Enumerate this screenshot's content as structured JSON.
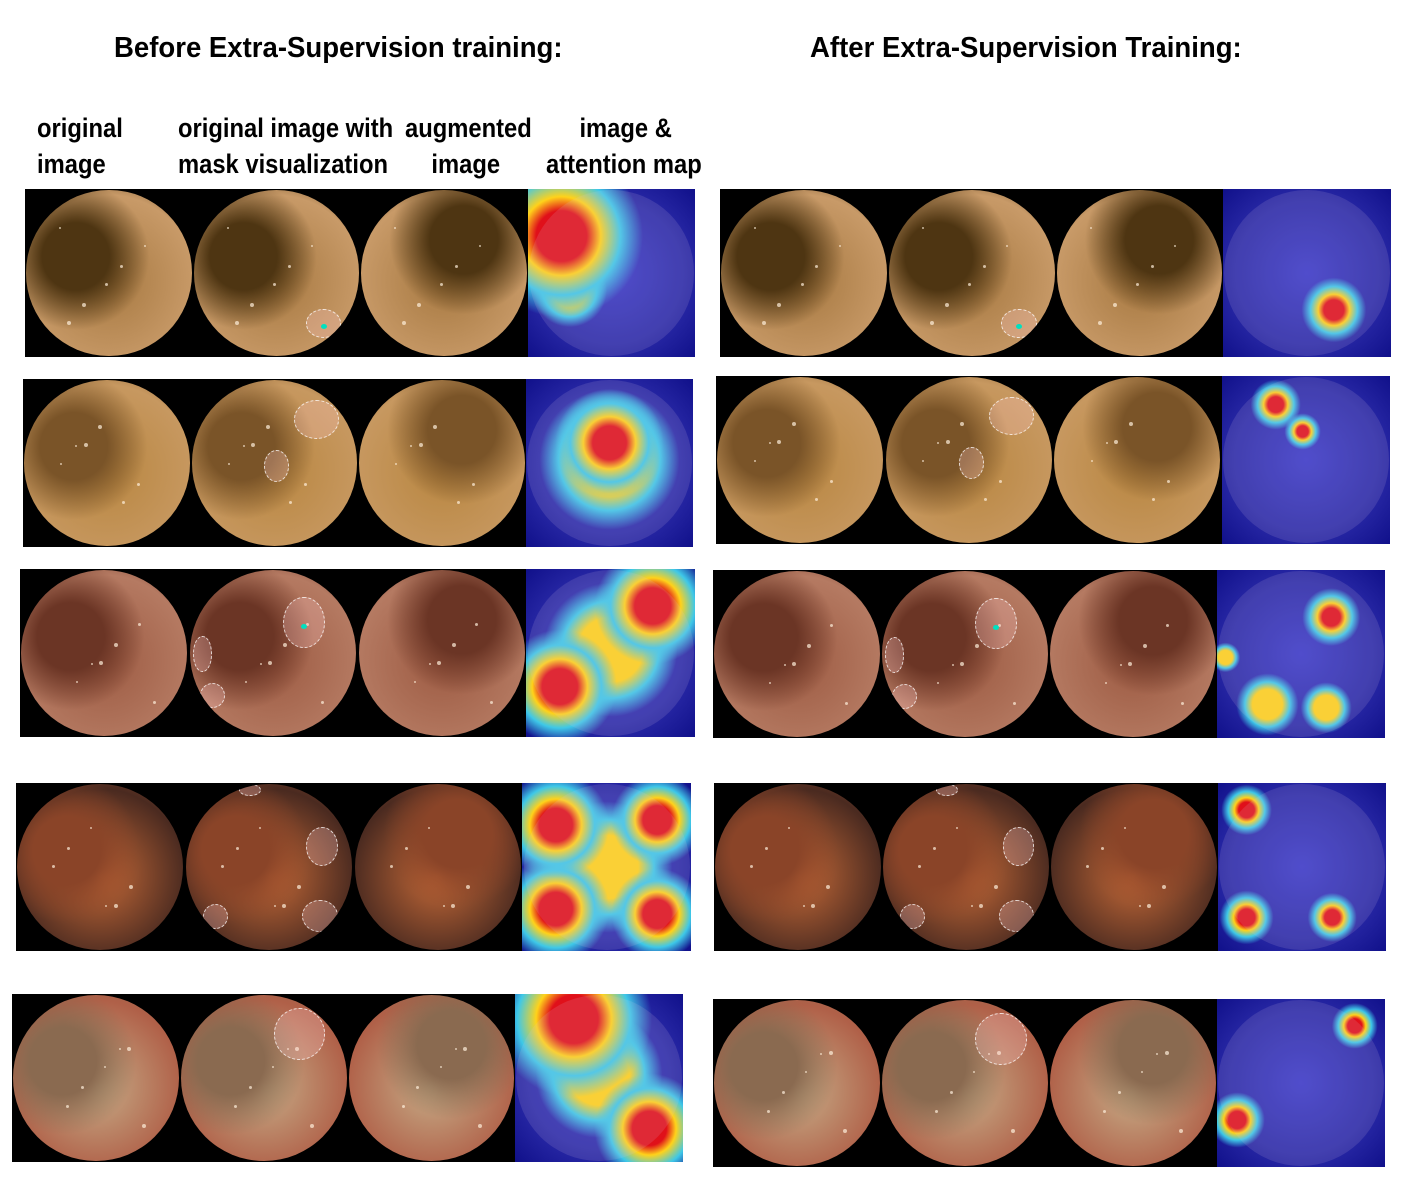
{
  "panels": {
    "before_title": "Before Extra-Supervision training:",
    "after_title": "After Extra-Supervision Training:"
  },
  "column_headers": [
    {
      "line1": "original",
      "line2": "image"
    },
    {
      "line1": "original image with",
      "line2": "mask visualization"
    },
    {
      "line1": "augmented",
      "line2": "image"
    },
    {
      "line1": "image &",
      "line2": "attention map"
    }
  ],
  "tile_types": [
    "original image",
    "mask visualization",
    "augmented image",
    "attention map"
  ],
  "colors": {
    "jet_hot": "#e0101a",
    "jet_warm": "#ffd21a",
    "jet_mid": "#3ec8e8",
    "jet_cold": "#10108a",
    "mask_marker": "#00e0c0"
  },
  "rows": [
    {
      "tissue": [
        "#a67840",
        "#4e3512",
        "#c89a68"
      ],
      "before_focus": "top-left",
      "after_focus": "bottom-right"
    },
    {
      "tissue": [
        "#b88640",
        "#7a5428",
        "#c79860"
      ],
      "before_focus": "center",
      "after_focus": "top-center"
    },
    {
      "tissue": [
        "#9c5a42",
        "#6b3525",
        "#b57a62"
      ],
      "before_focus": "top-right & bottom-left",
      "after_focus": "scattered"
    },
    {
      "tissue": [
        "#c66a38",
        "#8a4428",
        "#4a2a20"
      ],
      "before_focus": "corners",
      "after_focus": "three spots"
    },
    {
      "tissue": [
        "#c6ad88",
        "#8a6a50",
        "#b06048"
      ],
      "before_focus": "top & bottom-right",
      "after_focus": "top-right & left"
    }
  ]
}
